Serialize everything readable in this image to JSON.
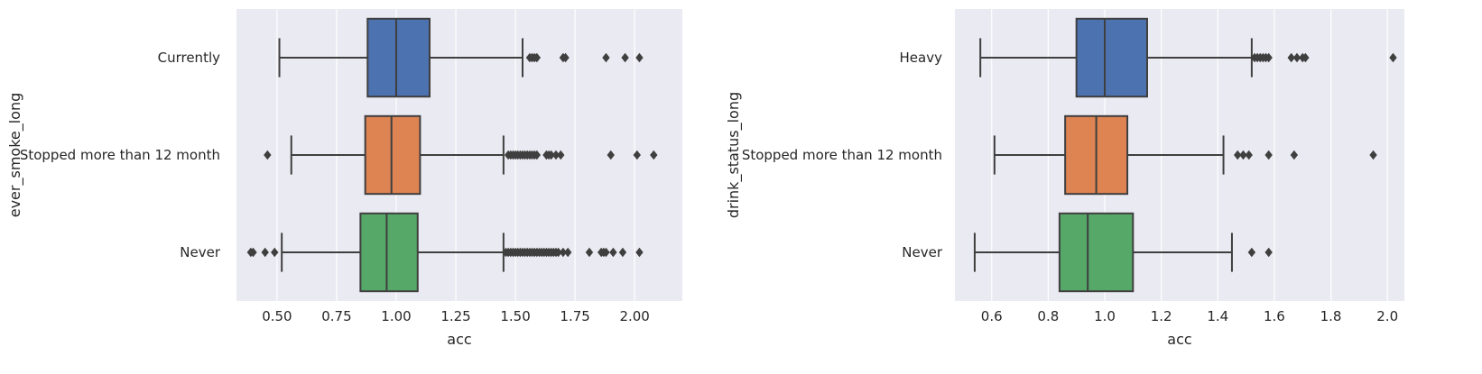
{
  "chart_data": [
    {
      "type": "boxplot",
      "orientation": "horizontal",
      "xlabel": "acc",
      "ylabel": "ever_smoke_long",
      "xlim": [
        0.33,
        2.2
      ],
      "xticks": [
        "0.50",
        "0.75",
        "1.00",
        "1.25",
        "1.50",
        "1.75",
        "2.00"
      ],
      "grid": true,
      "categories": [
        "Currently",
        "Stopped more than 12 month",
        "Never"
      ],
      "colors": [
        "#4c72b0",
        "#dd8452",
        "#55a868"
      ],
      "boxes": [
        {
          "whisker_low": 0.51,
          "q1": 0.88,
          "median": 1.0,
          "q3": 1.14,
          "whisker_high": 1.53,
          "outliers": [
            1.56,
            1.57,
            1.58,
            1.59,
            1.7,
            1.71,
            1.88,
            1.96,
            2.02
          ]
        },
        {
          "whisker_low": 0.56,
          "q1": 0.87,
          "median": 0.98,
          "q3": 1.1,
          "whisker_high": 1.45,
          "outliers": [
            0.46,
            1.47,
            1.48,
            1.49,
            1.5,
            1.51,
            1.52,
            1.53,
            1.54,
            1.55,
            1.56,
            1.57,
            1.58,
            1.59,
            1.63,
            1.64,
            1.65,
            1.67,
            1.69,
            1.9,
            2.01,
            2.08
          ]
        },
        {
          "whisker_low": 0.52,
          "q1": 0.85,
          "median": 0.96,
          "q3": 1.09,
          "whisker_high": 1.45,
          "outliers": [
            0.39,
            0.4,
            0.45,
            0.49,
            1.46,
            1.47,
            1.48,
            1.49,
            1.5,
            1.51,
            1.52,
            1.53,
            1.54,
            1.55,
            1.56,
            1.57,
            1.58,
            1.59,
            1.6,
            1.61,
            1.62,
            1.63,
            1.64,
            1.65,
            1.66,
            1.67,
            1.68,
            1.7,
            1.72,
            1.81,
            1.86,
            1.87,
            1.88,
            1.91,
            1.95,
            2.02
          ]
        }
      ]
    },
    {
      "type": "boxplot",
      "orientation": "horizontal",
      "xlabel": "acc",
      "ylabel": "drink_status_long",
      "xlim": [
        0.47,
        2.06
      ],
      "xticks": [
        "0.6",
        "0.8",
        "1.0",
        "1.2",
        "1.4",
        "1.6",
        "1.8",
        "2.0"
      ],
      "grid": true,
      "categories": [
        "Heavy",
        "Stopped more than 12 month",
        "Never"
      ],
      "colors": [
        "#4c72b0",
        "#dd8452",
        "#55a868"
      ],
      "boxes": [
        {
          "whisker_low": 0.56,
          "q1": 0.9,
          "median": 1.0,
          "q3": 1.15,
          "whisker_high": 1.52,
          "outliers": [
            1.53,
            1.54,
            1.55,
            1.56,
            1.57,
            1.58,
            1.66,
            1.68,
            1.7,
            1.71,
            2.02
          ]
        },
        {
          "whisker_low": 0.61,
          "q1": 0.86,
          "median": 0.97,
          "q3": 1.08,
          "whisker_high": 1.42,
          "outliers": [
            1.47,
            1.49,
            1.51,
            1.58,
            1.67,
            1.95
          ]
        },
        {
          "whisker_low": 0.54,
          "q1": 0.84,
          "median": 0.94,
          "q3": 1.1,
          "whisker_high": 1.45,
          "outliers": [
            1.52,
            1.58
          ]
        }
      ]
    }
  ]
}
